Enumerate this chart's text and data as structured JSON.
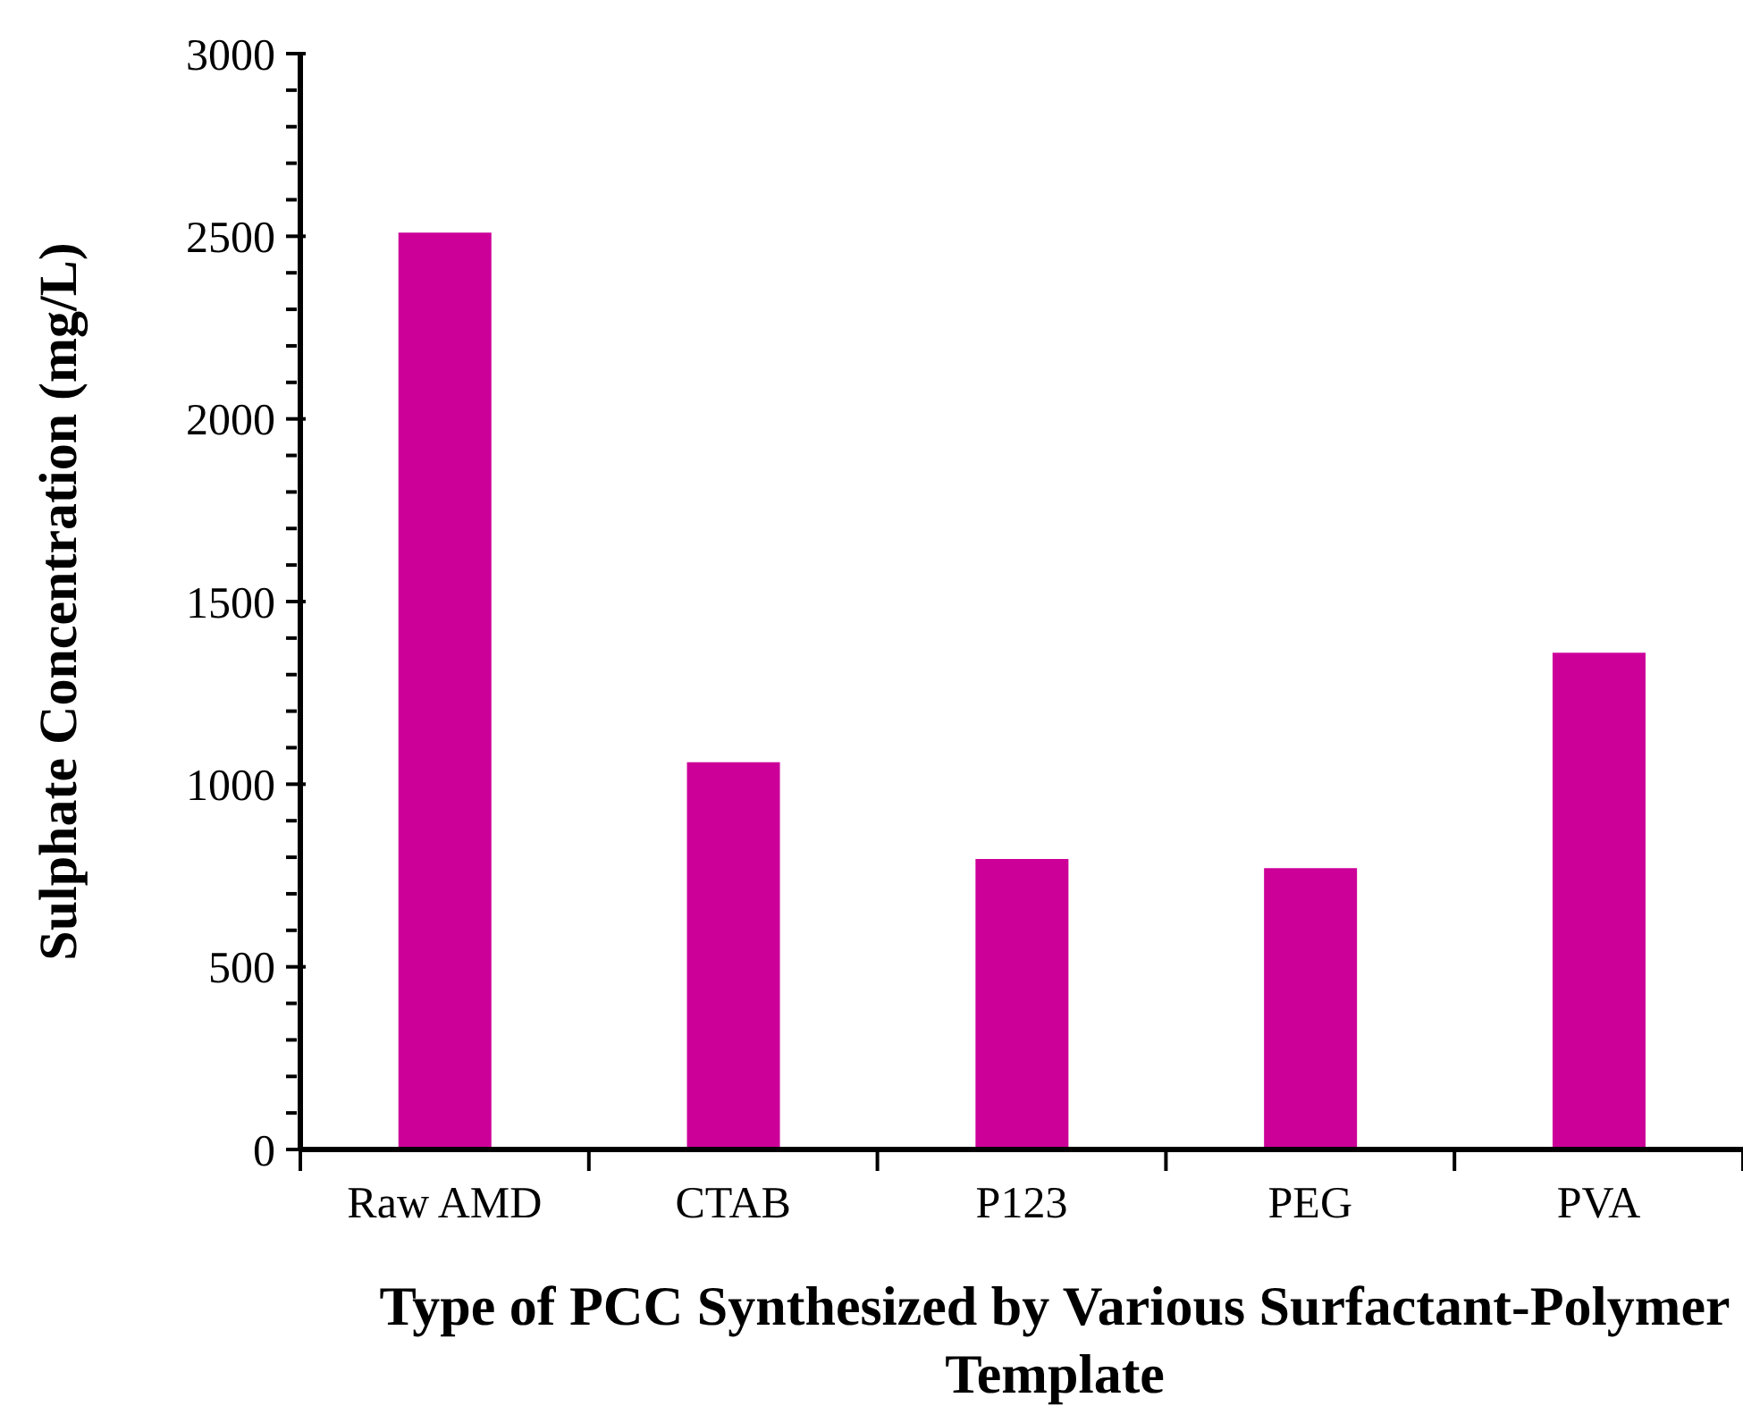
{
  "chart_data": {
    "type": "bar",
    "xlabel": "Type of PCC Synthesized by Various Surfactant-Polymer Template",
    "ylabel": "Sulphate Concentration (mg/L)",
    "categories": [
      "Raw AMD",
      "CTAB",
      "P123",
      "PEG",
      "PVA"
    ],
    "values": [
      2510,
      1060,
      795,
      770,
      1360
    ],
    "color": "#cc0099",
    "ylim": [
      0,
      3000
    ],
    "yticks": [
      0,
      {
        "value": 100,
        "label": null
      },
      {
        "value": 200,
        "label": null
      },
      {
        "value": 300,
        "label": null
      },
      {
        "value": 400,
        "label": null
      },
      500,
      {
        "value": 600,
        "label": null
      },
      {
        "value": 700,
        "label": null
      },
      {
        "value": 800,
        "label": null
      },
      {
        "value": 900,
        "label": null
      },
      1000,
      {
        "value": 1100,
        "label": null
      },
      {
        "value": 1200,
        "label": null
      },
      {
        "value": 1300,
        "label": null
      },
      {
        "value": 1400,
        "label": null
      },
      1500,
      {
        "value": 1600,
        "label": null
      },
      {
        "value": 1700,
        "label": null
      },
      {
        "value": 1800,
        "label": null
      },
      {
        "value": 1900,
        "label": null
      },
      2000,
      {
        "value": 2100,
        "label": null
      },
      {
        "value": 2200,
        "label": null
      },
      {
        "value": 2300,
        "label": null
      },
      {
        "value": 2400,
        "label": null
      },
      2500,
      {
        "value": 2600,
        "label": null
      },
      {
        "value": 2700,
        "label": null
      },
      {
        "value": 2800,
        "label": null
      },
      {
        "value": 2900,
        "label": null
      },
      3000
    ],
    "grid": false,
    "legend": false
  }
}
